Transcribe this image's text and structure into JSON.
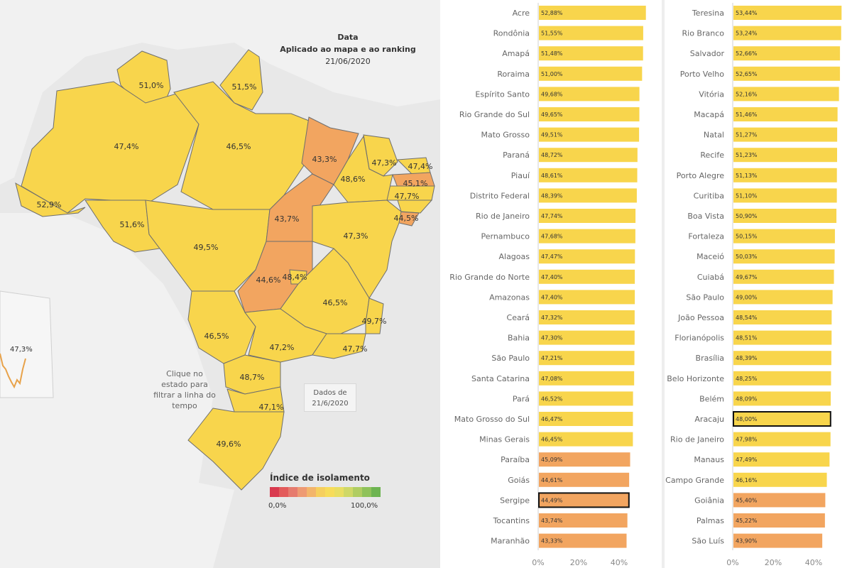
{
  "colors": {
    "yellow": "#f8d54c",
    "orange": "#f2a560",
    "highlight_border": "#111111",
    "water": "#e8e8e8",
    "neighbor": "#f1f1f1",
    "sparkline": "#e8a24a"
  },
  "map": {
    "date_box": {
      "title": "Data",
      "subtitle": "Aplicado ao mapa e ao ranking",
      "date": "21/06/2020"
    },
    "hint": "Clique no estado para filtrar a linha do tempo",
    "dados": "Dados de 21/6/2020",
    "legend": {
      "title": "Índice de isolamento",
      "min": "0,0%",
      "max": "100,0%",
      "colors": [
        "#d93a4f",
        "#e35b5b",
        "#e67b6e",
        "#ee9a73",
        "#f3b56b",
        "#f6cf5e",
        "#f7dc5a",
        "#e9de62",
        "#cfd867",
        "#b0cd62",
        "#8fc25a",
        "#6db451"
      ]
    },
    "sparkline_label": "47,3%"
  },
  "chart_data": [
    {
      "type": "map",
      "title": "",
      "regions": [
        {
          "name": "RR",
          "value": 51.0,
          "label": "51,0%"
        },
        {
          "name": "AP",
          "value": 51.5,
          "label": "51,5%"
        },
        {
          "name": "AM",
          "value": 47.4,
          "label": "47,4%"
        },
        {
          "name": "PA",
          "value": 46.5,
          "label": "46,5%"
        },
        {
          "name": "MA",
          "value": 43.3,
          "label": "43,3%"
        },
        {
          "name": "CE",
          "value": 47.3,
          "label": "47,3%"
        },
        {
          "name": "RN",
          "value": 47.4,
          "label": "47,4%"
        },
        {
          "name": "PB",
          "value": 45.1,
          "label": "45,1%"
        },
        {
          "name": "PE",
          "value": 47.7,
          "label": "47,7%"
        },
        {
          "name": "PI",
          "value": 48.6,
          "label": "48,6%"
        },
        {
          "name": "AL",
          "value": 47.5,
          "label": ""
        },
        {
          "name": "SE",
          "value": 44.5,
          "label": "44,5%"
        },
        {
          "name": "AC",
          "value": 52.9,
          "label": "52,9%"
        },
        {
          "name": "RO",
          "value": 51.6,
          "label": "51,6%"
        },
        {
          "name": "MT",
          "value": 49.5,
          "label": "49,5%"
        },
        {
          "name": "TO",
          "value": 43.7,
          "label": "43,7%"
        },
        {
          "name": "BA",
          "value": 47.3,
          "label": "47,3%"
        },
        {
          "name": "GO",
          "value": 44.6,
          "label": "44,6%"
        },
        {
          "name": "DF",
          "value": 48.4,
          "label": "48,4%"
        },
        {
          "name": "MG",
          "value": 46.5,
          "label": "46,5%"
        },
        {
          "name": "ES",
          "value": 49.7,
          "label": "49,7%"
        },
        {
          "name": "MS",
          "value": 46.5,
          "label": "46,5%"
        },
        {
          "name": "SP",
          "value": 47.2,
          "label": "47,2%"
        },
        {
          "name": "RJ",
          "value": 47.7,
          "label": "47,7%"
        },
        {
          "name": "PR",
          "value": 48.7,
          "label": "48,7%"
        },
        {
          "name": "SC",
          "value": 47.1,
          "label": "47,1%"
        },
        {
          "name": "RS",
          "value": 49.6,
          "label": "49,6%"
        }
      ]
    },
    {
      "type": "bar",
      "title": "",
      "orientation": "horizontal",
      "xlim": [
        0,
        45
      ],
      "ticks": [
        "0%",
        "20%",
        "40%"
      ],
      "categories": [
        "Acre",
        "Rondônia",
        "Amapá",
        "Roraima",
        "Espírito Santo",
        "Rio Grande do Sul",
        "Mato Grosso",
        "Paraná",
        "Piauí",
        "Distrito Federal",
        "Rio de Janeiro",
        "Pernambuco",
        "Alagoas",
        "Rio Grande do Norte",
        "Amazonas",
        "Ceará",
        "Bahia",
        "São Paulo",
        "Santa Catarina",
        "Pará",
        "Mato Grosso do Sul",
        "Minas Gerais",
        "Paraíba",
        "Goiás",
        "Sergipe",
        "Tocantins",
        "Maranhão"
      ],
      "values": [
        52.88,
        51.55,
        51.48,
        51.0,
        49.68,
        49.65,
        49.51,
        48.72,
        48.61,
        48.39,
        47.74,
        47.68,
        47.47,
        47.4,
        47.4,
        47.32,
        47.3,
        47.21,
        47.08,
        46.52,
        46.47,
        46.45,
        45.09,
        44.61,
        44.49,
        43.74,
        43.33
      ],
      "value_labels": [
        "52,88%",
        "51,55%",
        "51,48%",
        "51,00%",
        "49,68%",
        "49,65%",
        "49,51%",
        "48,72%",
        "48,61%",
        "48,39%",
        "47,74%",
        "47,68%",
        "47,47%",
        "47,40%",
        "47,40%",
        "47,32%",
        "47,30%",
        "47,21%",
        "47,08%",
        "46,52%",
        "46,47%",
        "46,45%",
        "45,09%",
        "44,61%",
        "44,49%",
        "43,74%",
        "43,33%"
      ],
      "highlighted": [
        "Sergipe"
      ]
    },
    {
      "type": "bar",
      "title": "",
      "orientation": "horizontal",
      "xlim": [
        0,
        45
      ],
      "ticks": [
        "0%",
        "20%",
        "40%"
      ],
      "categories": [
        "Teresina",
        "Rio Branco",
        "Salvador",
        "Porto Velho",
        "Vitória",
        "Macapá",
        "Natal",
        "Recife",
        "Porto Alegre",
        "Curitiba",
        "Boa Vista",
        "Fortaleza",
        "Maceió",
        "Cuiabá",
        "São Paulo",
        "João Pessoa",
        "Florianópolis",
        "Brasília",
        "Belo Horizonte",
        "Belém",
        "Aracaju",
        "Rio de Janeiro",
        "Manaus",
        "Campo Grande",
        "Goiânia",
        "Palmas",
        "São Luís"
      ],
      "values": [
        53.44,
        53.24,
        52.66,
        52.65,
        52.16,
        51.46,
        51.27,
        51.23,
        51.13,
        51.1,
        50.9,
        50.15,
        50.03,
        49.67,
        49.0,
        48.54,
        48.51,
        48.39,
        48.25,
        48.09,
        48.0,
        47.98,
        47.49,
        46.16,
        45.4,
        45.22,
        43.9
      ],
      "value_labels": [
        "53,44%",
        "53,24%",
        "52,66%",
        "52,65%",
        "52,16%",
        "51,46%",
        "51,27%",
        "51,23%",
        "51,13%",
        "51,10%",
        "50,90%",
        "50,15%",
        "50,03%",
        "49,67%",
        "49,00%",
        "48,54%",
        "48,51%",
        "48,39%",
        "48,25%",
        "48,09%",
        "48,00%",
        "47,98%",
        "47,49%",
        "46,16%",
        "45,40%",
        "45,22%",
        "43,90%"
      ],
      "highlighted": [
        "Aracaju"
      ]
    }
  ]
}
